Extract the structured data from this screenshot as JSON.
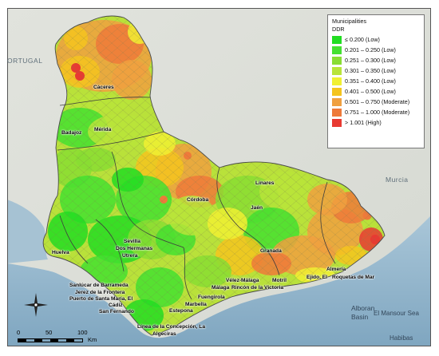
{
  "legend": {
    "title": "Municipalities",
    "subtitle": "DDR",
    "classes": [
      {
        "label": "≤ 0.200 (Low)",
        "color": "#22dd22"
      },
      {
        "label": "0.201 – 0.250 (Low)",
        "color": "#44e030"
      },
      {
        "label": "0.251 – 0.300 (Low)",
        "color": "#88dd33"
      },
      {
        "label": "0.301 – 0.350 (Low)",
        "color": "#b8e43a"
      },
      {
        "label": "0.351 – 0.400 (Low)",
        "color": "#f0f032"
      },
      {
        "label": "0.401 – 0.500 (Low)",
        "color": "#f4c41e"
      },
      {
        "label": "0.501 – 0.750 (Moderate)",
        "color": "#f0a040"
      },
      {
        "label": "0.751 – 1.000 (Moderate)",
        "color": "#ee7a3a"
      },
      {
        "label": "> 1.001 (High)",
        "color": "#e83a32"
      }
    ]
  },
  "background_labels": {
    "portugal": "ORTUGAL",
    "murcia": "Murcia",
    "alboran_line1": "Alboran",
    "alboran_line2": "Basin",
    "el_mansour": "El Mansour Sea",
    "habibas": "Habibas"
  },
  "cities": {
    "caceres": "Cáceres",
    "badajoz": "Badajoz",
    "merida": "Mérida",
    "cordoba": "Córdoba",
    "linares": "Linares",
    "jaen": "Jaén",
    "huelva": "Huelva",
    "sevilla": "Sevilla",
    "dos_hermanas": "Dos Hermanas",
    "utrera": "Utrera",
    "granada": "Granada",
    "almeria": "Almería",
    "ejido": "Ejido, El",
    "roquetas": "Roquetas de Mar",
    "velez": "Vélez-Málaga",
    "motril": "Motril",
    "malaga": "Málaga",
    "rincon": "Rincón de la Victoria",
    "sanlucar": "Sanlúcar de Barrameda",
    "jerez": "Jerez de la Frontera",
    "puerto": "Puerto de Santa María, El",
    "cadiz": "Cádiz",
    "san_fernando": "San Fernando",
    "fuengirola": "Fuengirola",
    "marbella": "Marbella",
    "estepona": "Estepona",
    "linea": "Línea de la Concepción, La",
    "algeciras": "Algeciras"
  },
  "scale": {
    "ticks": [
      "0",
      "50",
      "100"
    ],
    "unit": "Km"
  },
  "compass": {
    "icon": "compass-rose-icon"
  }
}
